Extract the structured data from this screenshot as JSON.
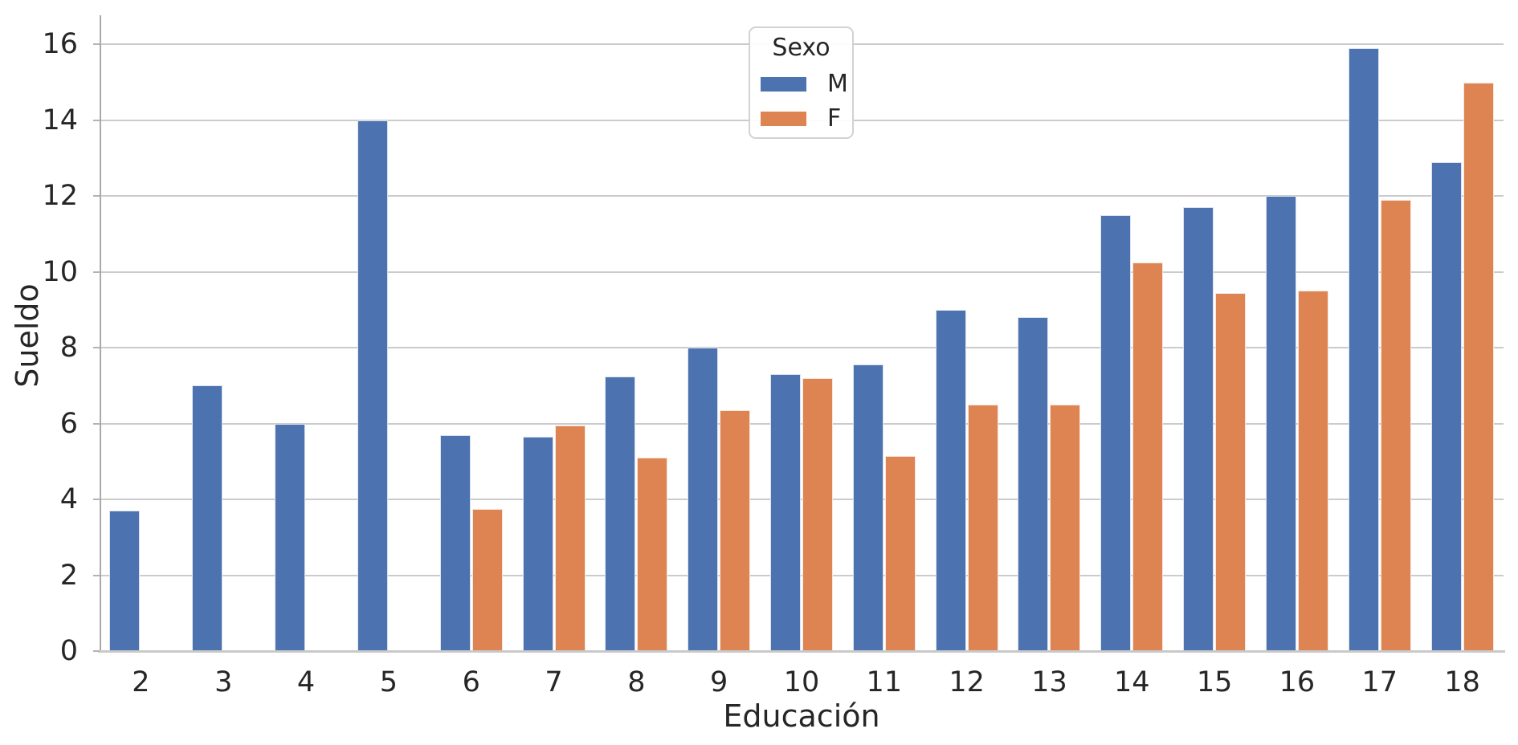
{
  "figure": {
    "background": "#ffffff",
    "grid_color": "#cbcbcb",
    "spine_color": "#a9a9a9",
    "text_color": "#262626"
  },
  "legend": {
    "title": "Sexo",
    "items": [
      {
        "label": "M",
        "color": "#4C72B0"
      },
      {
        "label": "F",
        "color": "#DD8452"
      }
    ]
  },
  "chart_data": {
    "type": "bar",
    "title": "",
    "xlabel": "Educación",
    "ylabel": "Sueldo",
    "categories": [
      2,
      3,
      4,
      5,
      6,
      7,
      8,
      9,
      10,
      11,
      12,
      13,
      14,
      15,
      16,
      17,
      18
    ],
    "series": [
      {
        "name": "M",
        "color": "#4C72B0",
        "values": [
          3.7,
          7.0,
          6.0,
          14.0,
          5.7,
          5.65,
          7.25,
          8.0,
          7.3,
          7.55,
          9.0,
          8.8,
          11.5,
          11.7,
          12.0,
          15.9,
          12.9
        ]
      },
      {
        "name": "F",
        "color": "#DD8452",
        "values": [
          null,
          null,
          null,
          null,
          3.75,
          5.95,
          5.1,
          6.35,
          7.2,
          5.15,
          6.5,
          6.5,
          10.25,
          9.45,
          9.5,
          11.9,
          15.0
        ]
      }
    ],
    "ylim": [
      0,
      16.77
    ],
    "yticks": [
      0,
      2,
      4,
      6,
      8,
      10,
      12,
      14,
      16
    ],
    "grid": "horizontal",
    "legend_position": "upper center",
    "legend_title": "Sexo"
  }
}
